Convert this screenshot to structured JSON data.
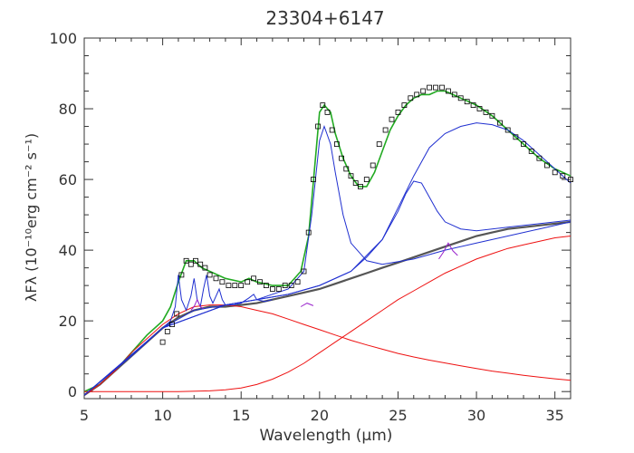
{
  "chart_data": {
    "type": "line",
    "title": "23304+6147",
    "xlabel": "Wavelength (μm)",
    "ylabel": "λFλ (10⁻¹⁰erg cm⁻² s⁻¹)",
    "xlim": [
      5,
      36
    ],
    "ylim": [
      -2,
      100
    ],
    "x_ticks": [
      5,
      10,
      15,
      20,
      25,
      30,
      35
    ],
    "y_ticks": [
      0,
      20,
      40,
      60,
      80,
      100
    ],
    "x_tick_labels": [
      "5",
      "10",
      "15",
      "20",
      "25",
      "30",
      "35"
    ],
    "y_tick_labels": [
      "0",
      "20",
      "40",
      "60",
      "80",
      "100"
    ],
    "grid": false,
    "legend": "none",
    "colors": {
      "observed": "#000000",
      "total_model": "#22aa22",
      "continuum_sum": "#555555",
      "dust_components": "#ee1111",
      "features": "#1f2fd0",
      "small_features": "#9922cc"
    },
    "observed": {
      "x": [
        10.0,
        10.3,
        10.6,
        10.9,
        11.2,
        11.5,
        11.8,
        12.1,
        12.4,
        12.7,
        13.0,
        13.4,
        13.8,
        14.2,
        14.6,
        15.0,
        15.4,
        15.8,
        16.2,
        16.6,
        17.0,
        17.4,
        17.8,
        18.2,
        18.6,
        19.0,
        19.3,
        19.6,
        19.9,
        20.2,
        20.5,
        20.8,
        21.1,
        21.4,
        21.7,
        22.0,
        22.3,
        22.6,
        23.0,
        23.4,
        23.8,
        24.2,
        24.6,
        25.0,
        25.4,
        25.8,
        26.2,
        26.6,
        27.0,
        27.4,
        27.8,
        28.2,
        28.6,
        29.0,
        29.4,
        29.8,
        30.2,
        30.6,
        31.0,
        31.5,
        32.0,
        32.5,
        33.0,
        33.5,
        34.0,
        34.5,
        35.0,
        35.5,
        36.0
      ],
      "y": [
        14,
        17,
        19,
        22,
        33,
        37,
        36,
        37,
        36,
        35,
        33,
        32,
        31,
        30,
        30,
        30,
        31,
        32,
        31,
        30,
        29,
        29,
        30,
        30,
        31,
        34,
        45,
        60,
        75,
        81,
        79,
        74,
        70,
        66,
        63,
        61,
        59,
        58,
        60,
        64,
        70,
        74,
        77,
        79,
        81,
        83,
        84,
        85,
        86,
        86,
        86,
        85,
        84,
        83,
        82,
        81,
        80,
        79,
        78,
        76,
        74,
        72,
        70,
        68,
        66,
        64,
        62,
        61,
        60
      ]
    },
    "series": [
      {
        "role": "total_model",
        "x": [
          5,
          6,
          7,
          8,
          9,
          10,
          10.5,
          11,
          11.5,
          12,
          12.5,
          13,
          14,
          15,
          15.5,
          16,
          17,
          18,
          18.8,
          19.3,
          19.7,
          20,
          20.3,
          20.7,
          21,
          21.5,
          22,
          22.5,
          23,
          23.5,
          24,
          24.5,
          25,
          25.5,
          26,
          26.5,
          27,
          27.5,
          28,
          28.5,
          29,
          29.5,
          30,
          31,
          32,
          33,
          34,
          35,
          36
        ],
        "y": [
          0,
          2,
          6,
          11,
          16,
          20,
          24,
          31,
          37,
          37,
          35,
          34,
          32,
          31,
          32,
          31,
          30,
          30,
          34,
          44,
          64,
          79,
          81,
          79,
          73,
          66,
          61,
          58,
          58,
          62,
          68,
          74,
          78,
          81,
          83,
          84,
          84,
          85,
          85,
          84,
          83,
          82,
          81,
          78,
          74,
          70,
          66,
          63,
          61
        ]
      },
      {
        "role": "continuum_sum",
        "x": [
          5,
          6,
          7,
          8,
          9,
          10,
          11,
          12,
          13,
          14,
          15,
          16,
          17,
          18,
          19,
          20,
          21,
          22,
          23,
          24,
          25,
          26,
          27,
          28,
          29,
          30,
          31,
          32,
          33,
          34,
          35,
          36
        ],
        "y": [
          -1,
          2,
          6,
          10,
          14,
          18,
          21,
          23,
          24,
          24,
          24.5,
          25,
          26,
          27,
          28,
          29,
          30.5,
          32,
          33.5,
          35,
          36.5,
          38,
          39.5,
          41,
          42.5,
          44,
          45,
          46,
          46.5,
          47,
          47.5,
          48
        ]
      },
      {
        "role": "dust_components",
        "x": [
          5,
          6,
          7,
          8,
          9,
          10,
          11,
          12,
          13,
          14,
          15,
          16,
          17,
          18,
          19,
          20,
          21,
          22,
          23,
          24,
          25,
          26,
          27,
          28,
          29,
          30,
          31,
          32,
          33,
          34,
          35,
          36
        ],
        "y": [
          -1,
          2,
          6,
          11,
          15,
          19,
          22,
          24,
          24.5,
          24.5,
          24,
          23,
          22,
          20.5,
          19,
          17.5,
          16,
          14.5,
          13.2,
          12,
          10.8,
          9.8,
          8.9,
          8.1,
          7.3,
          6.5,
          5.8,
          5.2,
          4.6,
          4.1,
          3.6,
          3.2
        ]
      },
      {
        "role": "dust_components",
        "x": [
          5,
          8,
          11,
          13,
          14,
          15,
          16,
          17,
          18,
          19,
          20,
          21,
          22,
          23,
          24,
          25,
          26,
          27,
          28,
          29,
          30,
          31,
          32,
          33,
          34,
          35,
          36
        ],
        "y": [
          0,
          0,
          0,
          0.2,
          0.5,
          1,
          2,
          3.5,
          5.5,
          8,
          11,
          14,
          17,
          20,
          23,
          26,
          28.5,
          31,
          33.5,
          35.5,
          37.5,
          39,
          40.5,
          41.5,
          42.5,
          43.5,
          44
        ]
      },
      {
        "role": "features",
        "x": [
          5,
          8,
          10,
          12,
          14,
          16,
          18,
          19,
          19.5,
          20,
          20.3,
          20.7,
          21,
          21.5,
          22,
          23,
          24,
          26,
          28,
          30,
          32,
          34,
          36
        ],
        "y": [
          -1,
          10,
          18,
          23,
          24.5,
          26,
          29,
          34,
          50,
          71,
          75,
          70,
          62,
          50,
          42,
          37,
          36,
          37.5,
          40,
          42,
          44,
          46,
          48
        ]
      },
      {
        "role": "features",
        "x": [
          5,
          10,
          14,
          18,
          20,
          22,
          23,
          24,
          25,
          25.5,
          26,
          26.5,
          27,
          27.5,
          28,
          29,
          30,
          32,
          34,
          36
        ],
        "y": [
          -1,
          18,
          24.5,
          27.5,
          30,
          34,
          38,
          43,
          51,
          56,
          59.5,
          59,
          55,
          51,
          48,
          46,
          45.5,
          46.5,
          47.5,
          48.5
        ]
      },
      {
        "role": "features",
        "x": [
          5,
          10,
          14,
          18,
          20,
          22,
          24,
          25,
          26,
          27,
          28,
          29,
          30,
          31,
          32,
          33,
          34,
          35,
          36
        ],
        "y": [
          -1,
          18,
          24.5,
          27.5,
          30,
          34,
          43,
          52,
          61,
          69,
          73,
          75,
          76,
          75.5,
          74,
          71,
          67,
          63,
          59
        ]
      },
      {
        "role": "features",
        "x": [
          10,
          10.5,
          10.8,
          11.0,
          11.2,
          11.5,
          11.8,
          12.0,
          12.2,
          12.4,
          12.6,
          12.8,
          13.0,
          13.2,
          13.4,
          13.6,
          13.8,
          14.0,
          14.5,
          15.0,
          15.5,
          15.8,
          16.0,
          16.5,
          17.0
        ],
        "y": [
          18,
          20,
          24,
          33,
          26,
          23,
          27,
          32,
          26,
          24,
          29,
          33,
          27,
          25,
          27,
          29,
          26,
          24.5,
          24.5,
          25,
          26.5,
          27.5,
          26,
          25.5,
          26
        ]
      },
      {
        "role": "small_features",
        "x": [
          11.8,
          12.0,
          12.2,
          12.4,
          12.6
        ],
        "y": [
          23,
          24,
          26,
          24,
          23.5
        ]
      },
      {
        "role": "small_features",
        "x": [
          18.8,
          19.2,
          19.6
        ],
        "y": [
          24,
          25,
          24.3
        ]
      },
      {
        "role": "small_features",
        "x": [
          27.6,
          27.9,
          28.2,
          28.5,
          28.8
        ],
        "y": [
          37.5,
          39.5,
          42,
          39.8,
          38.5
        ]
      }
    ]
  }
}
